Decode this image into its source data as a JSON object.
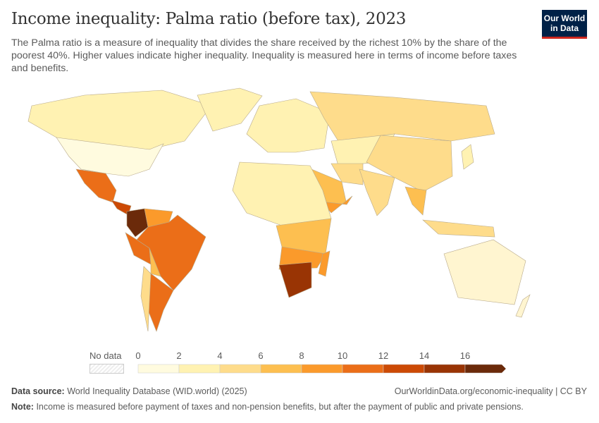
{
  "header": {
    "title": "Income inequality: Palma ratio (before tax), 2023",
    "subtitle": "The Palma ratio is a measure of inequality that divides the share received by the richest 10% by the share of the poorest 40%. Higher values indicate higher inequality. Inequality is measured here in terms of income before taxes and benefits.",
    "logo": "Our World in Data"
  },
  "legend": {
    "no_data_label": "No data",
    "ticks": [
      "0",
      "2",
      "4",
      "6",
      "8",
      "10",
      "12",
      "14",
      "16"
    ],
    "colors": [
      "#fffbdf",
      "#fff2b2",
      "#fedc8b",
      "#fdbf50",
      "#fb9a2b",
      "#eb6e18",
      "#cc4a05",
      "#993404",
      "#6b2a0a"
    ]
  },
  "footer": {
    "source_label": "Data source:",
    "source": "World Inequality Database (WID.world) (2025)",
    "url": "OurWorldinData.org/economic-inequality | CC BY",
    "note_label": "Note:",
    "note": "Income is measured before payment of taxes and non-pension benefits, but after the payment of public and private pensions."
  }
}
